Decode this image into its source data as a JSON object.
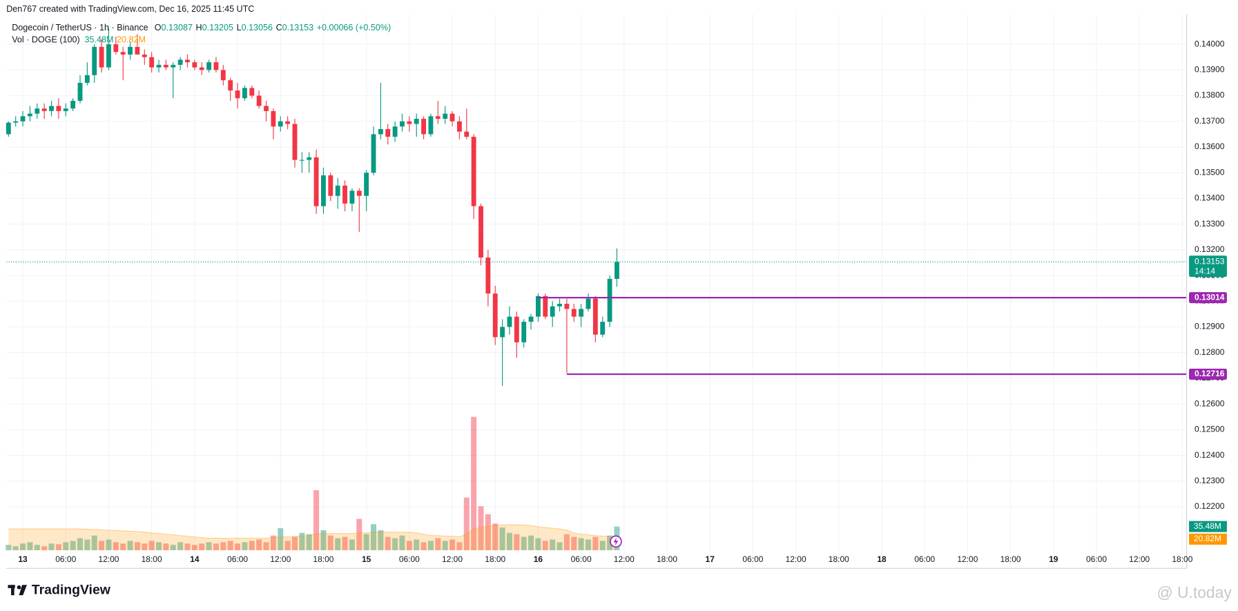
{
  "header": "Den767 created with TradingView.com, Dec 16, 2025 11:45 UTC",
  "footer": {
    "brand": "TradingView",
    "watermark": "@ U.today"
  },
  "chart_data": {
    "type": "candlestick",
    "symbol": "Dogecoin / TetherUS · 1h · Binance",
    "ohlc_labels": [
      "O",
      "H",
      "L",
      "C"
    ],
    "change": "+0.00066 (+0.50%)",
    "countdown": "14:14",
    "up_color": "#089981",
    "down_color": "#f23645",
    "grid": true,
    "xlim": [
      -0.3,
      164.6
    ],
    "xticks": [
      {
        "value": 2,
        "label": "13"
      },
      {
        "value": 8,
        "label": "06:00"
      },
      {
        "value": 14,
        "label": "12:00"
      },
      {
        "value": 20,
        "label": "18:00"
      },
      {
        "value": 26,
        "label": "14"
      },
      {
        "value": 32,
        "label": "06:00"
      },
      {
        "value": 38,
        "label": "12:00"
      },
      {
        "value": 44,
        "label": "18:00"
      },
      {
        "value": 50,
        "label": "15"
      },
      {
        "value": 56,
        "label": "06:00"
      },
      {
        "value": 62,
        "label": "12:00"
      },
      {
        "value": 68,
        "label": "18:00"
      },
      {
        "value": 74,
        "label": "16"
      },
      {
        "value": 80,
        "label": "06:00"
      },
      {
        "value": 86,
        "label": "12:00"
      },
      {
        "value": 92,
        "label": "18:00"
      },
      {
        "value": 98,
        "label": "17"
      },
      {
        "value": 104,
        "label": "06:00"
      },
      {
        "value": 110,
        "label": "12:00"
      },
      {
        "value": 116,
        "label": "18:00"
      },
      {
        "value": 122,
        "label": "18"
      },
      {
        "value": 128,
        "label": "06:00"
      },
      {
        "value": 134,
        "label": "12:00"
      },
      {
        "value": 140,
        "label": "18:00"
      },
      {
        "value": 146,
        "label": "19"
      },
      {
        "value": 152,
        "label": "06:00"
      },
      {
        "value": 158,
        "label": "12:00"
      },
      {
        "value": 164,
        "label": "18:00"
      }
    ],
    "ylim": [
      0.12031,
      0.14117
    ],
    "yticks": [
      {
        "value": 0.122,
        "label": "0.12200"
      },
      {
        "value": 0.123,
        "label": "0.12300"
      },
      {
        "value": 0.124,
        "label": "0.12400"
      },
      {
        "value": 0.125,
        "label": "0.12500"
      },
      {
        "value": 0.126,
        "label": "0.12600"
      },
      {
        "value": 0.127,
        "label": "0.12700"
      },
      {
        "value": 0.128,
        "label": "0.12800"
      },
      {
        "value": 0.129,
        "label": "0.12900"
      },
      {
        "value": 0.13,
        "label": "0.13000"
      },
      {
        "value": 0.131,
        "label": "0.13100"
      },
      {
        "value": 0.132,
        "label": "0.13200"
      },
      {
        "value": 0.133,
        "label": "0.13300"
      },
      {
        "value": 0.134,
        "label": "0.13400"
      },
      {
        "value": 0.135,
        "label": "0.13500"
      },
      {
        "value": 0.136,
        "label": "0.13600"
      },
      {
        "value": 0.137,
        "label": "0.13700"
      },
      {
        "value": 0.138,
        "label": "0.13800"
      },
      {
        "value": 0.139,
        "label": "0.13900"
      },
      {
        "value": 0.14,
        "label": "0.14000"
      }
    ],
    "levels": [
      {
        "value": 0.13014,
        "color": "#9c27b0"
      },
      {
        "value": 0.12716,
        "color": "#9c27b0"
      }
    ],
    "ohlc": [
      [
        0.1365,
        0.137,
        0.1364,
        0.13695
      ],
      [
        0.13695,
        0.1372,
        0.1368,
        0.137
      ],
      [
        0.137,
        0.1374,
        0.1368,
        0.1372
      ],
      [
        0.1372,
        0.1376,
        0.137,
        0.1373
      ],
      [
        0.1373,
        0.1377,
        0.1371,
        0.1375
      ],
      [
        0.1375,
        0.1377,
        0.1371,
        0.1374
      ],
      [
        0.1374,
        0.1378,
        0.1372,
        0.1376
      ],
      [
        0.1376,
        0.1379,
        0.1371,
        0.1374
      ],
      [
        0.1374,
        0.1377,
        0.1372,
        0.1375
      ],
      [
        0.1375,
        0.1379,
        0.1374,
        0.1378
      ],
      [
        0.1378,
        0.1388,
        0.1377,
        0.1385
      ],
      [
        0.1385,
        0.1393,
        0.1384,
        0.1388
      ],
      [
        0.1388,
        0.14,
        0.1385,
        0.1399
      ],
      [
        0.1399,
        0.1402,
        0.1389,
        0.1391
      ],
      [
        0.1391,
        0.1406,
        0.139,
        0.14
      ],
      [
        0.14,
        0.1403,
        0.1396,
        0.1397
      ],
      [
        0.1397,
        0.1399,
        0.1386,
        0.1396
      ],
      [
        0.1396,
        0.1401,
        0.1394,
        0.1399
      ],
      [
        0.1399,
        0.1404,
        0.1397,
        0.1396
      ],
      [
        0.1396,
        0.1398,
        0.1392,
        0.1395
      ],
      [
        0.1395,
        0.1397,
        0.1389,
        0.1391
      ],
      [
        0.1391,
        0.1394,
        0.1389,
        0.1392
      ],
      [
        0.1392,
        0.1394,
        0.139,
        0.1391
      ],
      [
        0.1391,
        0.1393,
        0.1379,
        0.1392
      ],
      [
        0.1392,
        0.1395,
        0.139,
        0.1394
      ],
      [
        0.1394,
        0.1396,
        0.1391,
        0.1393
      ],
      [
        0.1393,
        0.1394,
        0.139,
        0.1391
      ],
      [
        0.1391,
        0.1393,
        0.1388,
        0.139
      ],
      [
        0.139,
        0.1394,
        0.1389,
        0.1393
      ],
      [
        0.1393,
        0.1395,
        0.1389,
        0.139
      ],
      [
        0.139,
        0.1392,
        0.1384,
        0.1386
      ],
      [
        0.1386,
        0.1387,
        0.1378,
        0.1382
      ],
      [
        0.1382,
        0.1385,
        0.1375,
        0.1379
      ],
      [
        0.1379,
        0.1384,
        0.1378,
        0.1383
      ],
      [
        0.1383,
        0.1384,
        0.1379,
        0.138
      ],
      [
        0.138,
        0.1382,
        0.1375,
        0.1376
      ],
      [
        0.1376,
        0.1378,
        0.137,
        0.1374
      ],
      [
        0.1374,
        0.1375,
        0.1363,
        0.1368
      ],
      [
        0.1368,
        0.1372,
        0.1366,
        0.137
      ],
      [
        0.137,
        0.1372,
        0.1367,
        0.1369
      ],
      [
        0.1369,
        0.1371,
        0.1352,
        0.1355
      ],
      [
        0.1355,
        0.1358,
        0.135,
        0.1355
      ],
      [
        0.1355,
        0.1358,
        0.135,
        0.1356
      ],
      [
        0.1356,
        0.1359,
        0.1334,
        0.1337
      ],
      [
        0.1337,
        0.1352,
        0.1334,
        0.1349
      ],
      [
        0.1349,
        0.135,
        0.1339,
        0.1341
      ],
      [
        0.1341,
        0.1348,
        0.1336,
        0.1345
      ],
      [
        0.1345,
        0.1347,
        0.1335,
        0.1338
      ],
      [
        0.1338,
        0.1344,
        0.1335,
        0.1343
      ],
      [
        0.1343,
        0.1344,
        0.1327,
        0.1341
      ],
      [
        0.1341,
        0.1351,
        0.1335,
        0.135
      ],
      [
        0.135,
        0.1368,
        0.1349,
        0.1365
      ],
      [
        0.1365,
        0.1385,
        0.1363,
        0.1367
      ],
      [
        0.1367,
        0.1369,
        0.1361,
        0.1364
      ],
      [
        0.1364,
        0.137,
        0.1362,
        0.1368
      ],
      [
        0.1368,
        0.1373,
        0.1366,
        0.137
      ],
      [
        0.137,
        0.1372,
        0.1366,
        0.1369
      ],
      [
        0.1369,
        0.1373,
        0.1364,
        0.1371
      ],
      [
        0.1371,
        0.1372,
        0.1363,
        0.1365
      ],
      [
        0.1365,
        0.1373,
        0.1364,
        0.1372
      ],
      [
        0.1372,
        0.1378,
        0.1369,
        0.1371
      ],
      [
        0.1371,
        0.1376,
        0.1369,
        0.1373
      ],
      [
        0.1373,
        0.1374,
        0.1368,
        0.137
      ],
      [
        0.137,
        0.1372,
        0.1363,
        0.1366
      ],
      [
        0.1366,
        0.1375,
        0.1363,
        0.1364
      ],
      [
        0.1364,
        0.1365,
        0.1332,
        0.1337
      ],
      [
        0.1337,
        0.1338,
        0.1314,
        0.1317
      ],
      [
        0.1317,
        0.132,
        0.1298,
        0.1303
      ],
      [
        0.1303,
        0.1306,
        0.1283,
        0.1286
      ],
      [
        0.1286,
        0.1293,
        0.1267,
        0.129
      ],
      [
        0.129,
        0.1298,
        0.1287,
        0.1294
      ],
      [
        0.1294,
        0.1296,
        0.1278,
        0.1284
      ],
      [
        0.1284,
        0.1293,
        0.1282,
        0.1292
      ],
      [
        0.1292,
        0.1295,
        0.1289,
        0.1294
      ],
      [
        0.1294,
        0.1303,
        0.1292,
        0.1302
      ],
      [
        0.1302,
        0.1303,
        0.1293,
        0.1294
      ],
      [
        0.1294,
        0.13,
        0.129,
        0.1298
      ],
      [
        0.1298,
        0.1301,
        0.1296,
        0.1299
      ],
      [
        0.1299,
        0.1301,
        0.1272,
        0.1297
      ],
      [
        0.1297,
        0.1299,
        0.1292,
        0.1294
      ],
      [
        0.1294,
        0.1299,
        0.129,
        0.1297
      ],
      [
        0.1297,
        0.1303,
        0.1296,
        0.1301
      ],
      [
        0.1301,
        0.1302,
        0.1284,
        0.1287
      ],
      [
        0.1287,
        0.1294,
        0.1286,
        0.1292
      ],
      [
        0.1292,
        0.131,
        0.129,
        0.13087
      ],
      [
        0.13087,
        0.13205,
        0.13056,
        0.13153
      ]
    ],
    "volume": {
      "name": "Vol · DOGE (100)",
      "values": [
        8,
        6,
        10,
        12,
        8,
        6,
        10,
        9,
        12,
        14,
        18,
        16,
        22,
        14,
        16,
        12,
        10,
        14,
        12,
        10,
        14,
        12,
        10,
        8,
        12,
        10,
        8,
        10,
        12,
        10,
        12,
        14,
        10,
        12,
        14,
        16,
        12,
        22,
        33,
        14,
        20,
        26,
        24,
        90,
        30,
        22,
        18,
        20,
        16,
        47,
        24,
        39,
        30,
        20,
        18,
        22,
        14,
        16,
        12,
        14,
        18,
        14,
        16,
        12,
        79,
        200,
        66,
        54,
        40,
        34,
        26,
        24,
        20,
        22,
        18,
        14,
        16,
        12,
        24,
        20,
        18,
        16,
        20,
        14,
        22,
        35.48
      ],
      "value_labels": [
        null,
        null,
        null,
        null,
        null,
        null,
        null,
        null,
        null,
        null,
        null,
        null,
        null,
        null,
        null,
        null,
        null,
        null,
        null,
        null,
        null,
        null,
        null,
        null,
        null,
        null,
        null,
        null,
        null,
        null,
        null,
        null,
        null,
        null,
        null,
        null,
        null,
        null,
        null,
        null,
        null,
        null,
        null,
        null,
        null,
        null,
        null,
        null,
        null,
        null,
        null,
        null,
        null,
        null,
        null,
        null,
        null,
        null,
        null,
        null,
        null,
        null,
        null,
        null,
        null,
        null,
        null,
        null,
        null,
        null,
        null,
        null,
        null,
        null,
        null,
        null,
        null,
        null,
        null,
        null,
        null,
        null,
        null,
        null,
        null,
        "35.48M"
      ],
      "ma": [
        32,
        32,
        32,
        32,
        32,
        32,
        32,
        32,
        32,
        32,
        32,
        31.5,
        31,
        30.5,
        30,
        29.5,
        29,
        28.5,
        28,
        27,
        26,
        25,
        24,
        23,
        22,
        21,
        20,
        19,
        18,
        18,
        18,
        18,
        18,
        18,
        18,
        18,
        18,
        19,
        20,
        20,
        21,
        21,
        22,
        25,
        25,
        25,
        25,
        25,
        25,
        26,
        26,
        27,
        27,
        27,
        27,
        27,
        27,
        26,
        24,
        22,
        22,
        21,
        21,
        20,
        24,
        32,
        34,
        36,
        37,
        38,
        38,
        38,
        38,
        37,
        35,
        34,
        33,
        32,
        30,
        26,
        24,
        23,
        22,
        21,
        21,
        20.82
      ],
      "ma_labels": [
        null,
        null,
        null,
        null,
        null,
        null,
        null,
        null,
        null,
        null,
        null,
        null,
        null,
        null,
        null,
        null,
        null,
        null,
        null,
        null,
        null,
        null,
        null,
        null,
        null,
        null,
        null,
        null,
        null,
        null,
        null,
        null,
        null,
        null,
        null,
        null,
        null,
        null,
        null,
        null,
        null,
        null,
        null,
        null,
        null,
        null,
        null,
        null,
        null,
        null,
        null,
        null,
        null,
        null,
        null,
        null,
        null,
        null,
        null,
        null,
        null,
        null,
        null,
        null,
        null,
        null,
        null,
        null,
        null,
        null,
        null,
        null,
        null,
        null,
        null,
        null,
        null,
        null,
        null,
        null,
        null,
        null,
        null,
        null,
        null,
        "20.82M"
      ],
      "ma_color": "#ff9800"
    }
  }
}
